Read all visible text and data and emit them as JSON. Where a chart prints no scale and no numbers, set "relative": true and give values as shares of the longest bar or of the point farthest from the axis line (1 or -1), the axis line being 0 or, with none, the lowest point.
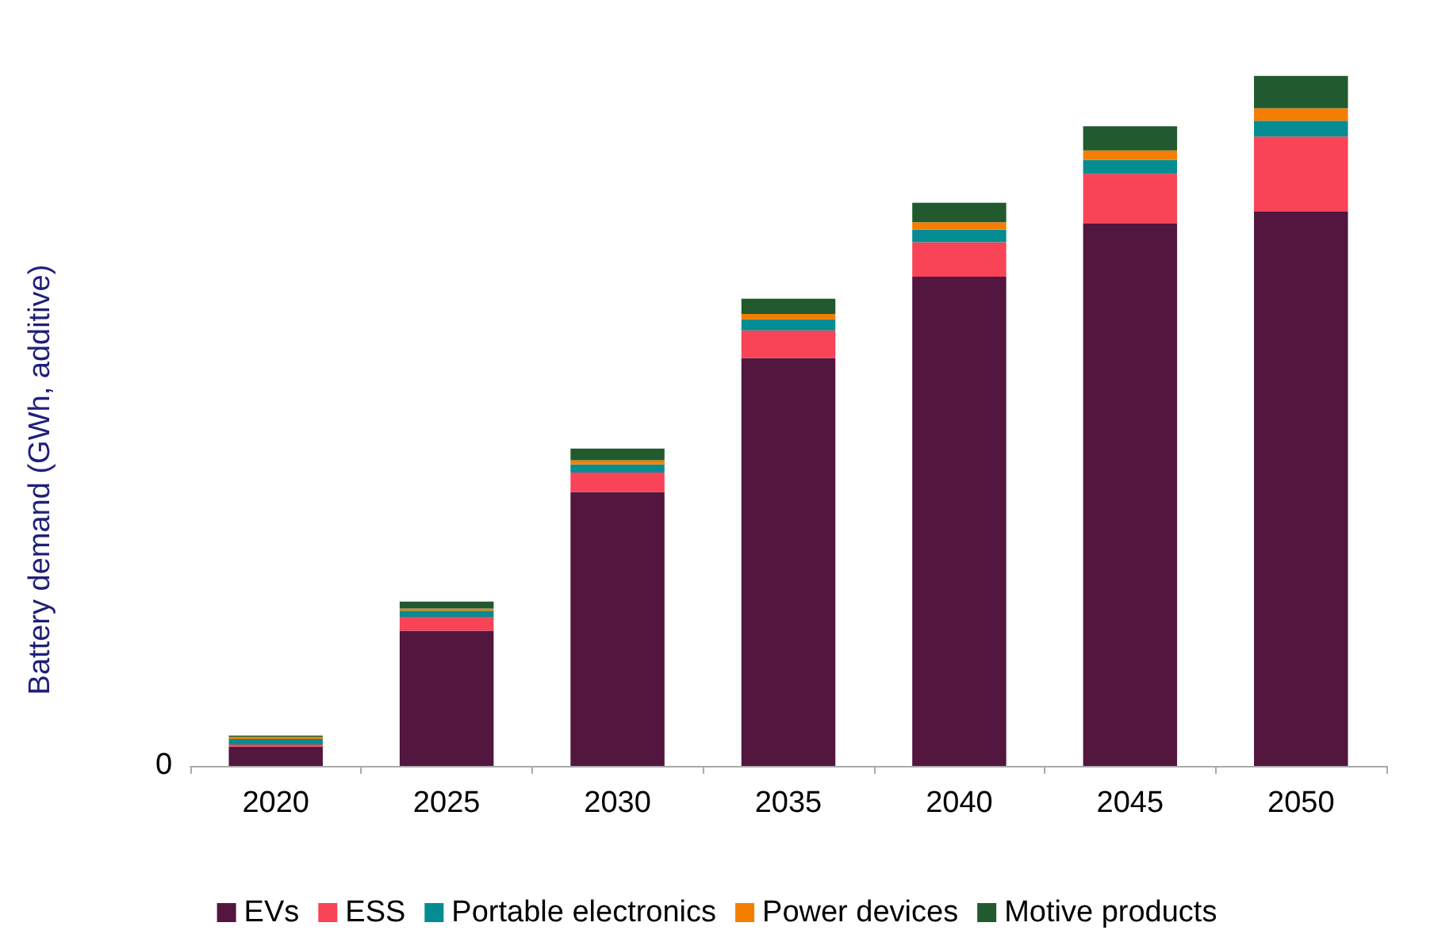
{
  "chart_data": {
    "type": "bar",
    "ylabel": "Battery demand (GWh, additive)",
    "relative": true,
    "stacked": true,
    "categories": [
      "2020",
      "2025",
      "2030",
      "2035",
      "2040",
      "2045",
      "2050"
    ],
    "series": [
      {
        "name": "EVs",
        "color": "#52163f",
        "values": [
          0.028,
          0.196,
          0.397,
          0.591,
          0.709,
          0.786,
          0.803
        ]
      },
      {
        "name": "ESS",
        "color": "#f94357",
        "values": [
          0.003,
          0.02,
          0.028,
          0.04,
          0.05,
          0.072,
          0.109
        ]
      },
      {
        "name": "Portable electronics",
        "color": "#048c92",
        "values": [
          0.008,
          0.009,
          0.012,
          0.016,
          0.018,
          0.02,
          0.023
        ]
      },
      {
        "name": "Power devices",
        "color": "#f57e00",
        "values": [
          0.003,
          0.003,
          0.006,
          0.008,
          0.011,
          0.014,
          0.018
        ]
      },
      {
        "name": "Motive products",
        "color": "#215a2e",
        "values": [
          0.002,
          0.01,
          0.017,
          0.022,
          0.028,
          0.035,
          0.047
        ]
      }
    ],
    "annotations": [
      "0"
    ],
    "legend": "bottom",
    "grid": false
  }
}
